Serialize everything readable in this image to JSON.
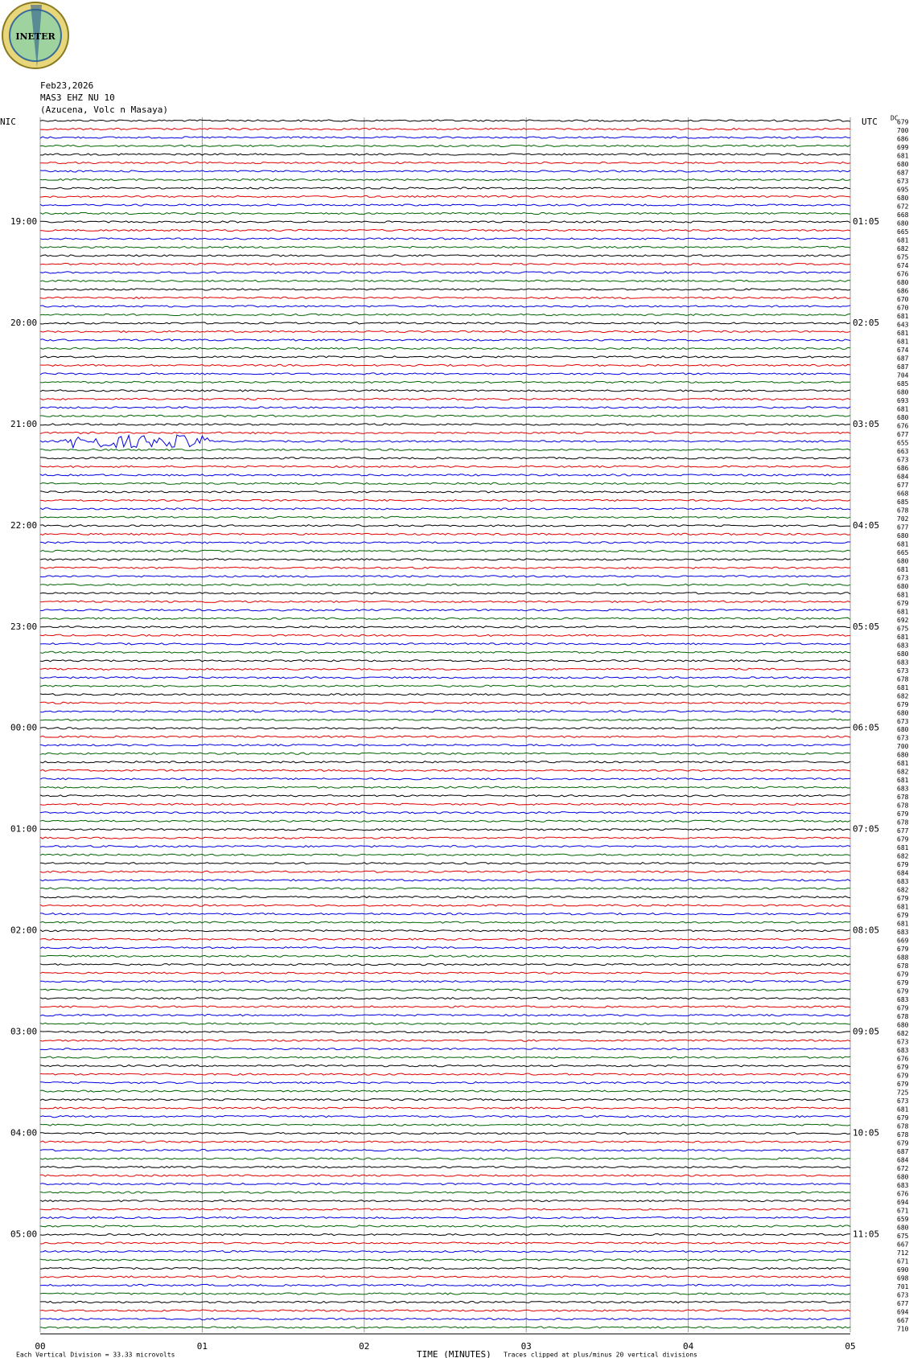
{
  "header": {
    "logo": "INETER",
    "date": "Feb23,2026",
    "station": "MAS3 EHZ NU 10",
    "location": "(Azucena, Volc n Masaya)",
    "left_zone": "NIC",
    "right_zone": "UTC",
    "dc_header": "DC"
  },
  "chart_data": {
    "type": "helicorder",
    "xlabel": "TIME (MINUTES)",
    "xlim": [
      0,
      5
    ],
    "xticks": [
      {
        "value": 0,
        "label": "00"
      },
      {
        "value": 1,
        "label": "01"
      },
      {
        "value": 2,
        "label": "02"
      },
      {
        "value": 3,
        "label": "03"
      },
      {
        "value": 4,
        "label": "04"
      },
      {
        "value": 5,
        "label": "05"
      }
    ],
    "trace_colors": [
      "#000000",
      "#e00000",
      "#0000e0",
      "#006400"
    ],
    "nic_labels": [
      "19:00",
      "20:00",
      "21:00",
      "22:00",
      "23:00",
      "00:00",
      "01:00",
      "02:00",
      "03:00",
      "04:00",
      "05:00"
    ],
    "utc_labels": [
      "01:05",
      "02:05",
      "03:05",
      "04:05",
      "05:05",
      "06:05",
      "07:05",
      "08:05",
      "09:05",
      "10:05",
      "11:05"
    ],
    "dc_values": [
      679,
      700,
      686,
      699,
      681,
      680,
      687,
      673,
      695,
      680,
      672,
      668,
      680,
      665,
      681,
      682,
      675,
      674,
      676,
      680,
      686,
      670,
      670,
      681,
      643,
      681,
      681,
      674,
      687,
      687,
      704,
      685,
      680,
      693,
      681,
      680,
      676,
      677,
      655,
      663,
      673,
      686,
      684,
      677,
      668,
      685,
      678,
      702,
      677,
      680,
      681,
      665,
      680,
      681,
      673,
      680,
      681,
      679,
      681,
      692,
      675,
      681,
      683,
      680,
      683,
      673,
      678,
      681,
      682,
      679,
      680,
      673,
      680,
      673,
      700,
      680,
      681,
      682,
      681,
      683,
      678,
      678,
      679,
      678,
      677,
      679,
      681,
      682,
      679,
      684,
      683,
      682,
      679,
      681,
      679,
      681,
      683,
      669,
      679,
      688,
      678,
      679,
      679,
      679,
      683,
      679,
      678,
      680,
      682,
      673,
      683,
      676,
      679,
      679,
      679,
      725,
      673,
      681,
      679,
      678,
      678,
      679,
      687,
      684,
      672,
      680,
      683,
      676,
      694,
      671,
      659,
      680,
      675,
      667,
      712,
      671,
      690,
      698,
      701,
      673,
      677,
      694,
      667,
      710
    ],
    "footer_left": "Each Vertical Division =   33.33 microvolts",
    "footer_right": "Traces clipped at plus/minus 20 vertical divisions"
  }
}
